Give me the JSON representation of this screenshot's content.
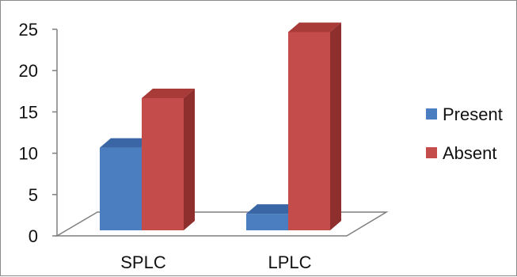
{
  "chart_data": {
    "type": "bar",
    "title": "",
    "xlabel": "",
    "ylabel": "",
    "categories": [
      "SPLC",
      "LPLC"
    ],
    "series": [
      {
        "name": "Present",
        "values": [
          10,
          2
        ],
        "color": "#4a7ec0",
        "top_color": "#3a66a6",
        "side_color": "#2d5186"
      },
      {
        "name": "Absent",
        "values": [
          16,
          24
        ],
        "color": "#c44c4a",
        "top_color": "#a83a38",
        "side_color": "#8e2f2e"
      }
    ],
    "ylim": [
      0,
      25
    ],
    "yticks": [
      0,
      5,
      10,
      15,
      20,
      25
    ],
    "grid": false,
    "legend": "right",
    "three_d": true
  }
}
